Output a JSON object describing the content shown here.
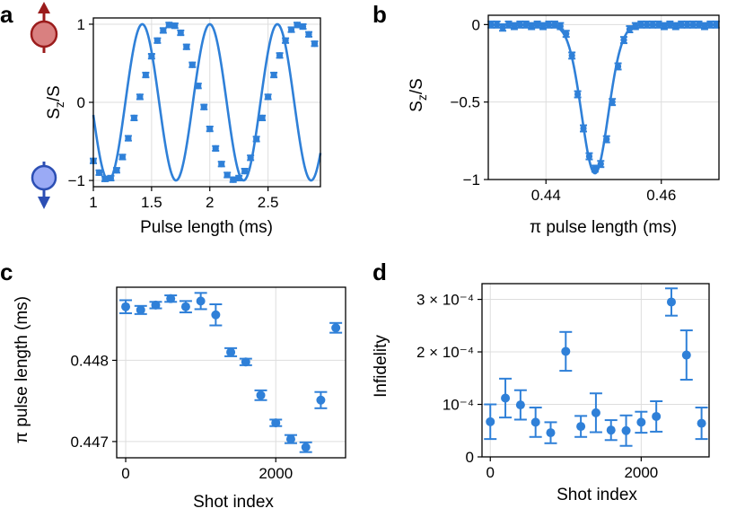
{
  "panel_labels": [
    "a",
    "b",
    "c",
    "d"
  ],
  "colors": {
    "series": "#2f80d8",
    "grid": "#dddddd",
    "spin_up": "#d98080",
    "spin_up_arrow": "#9b1c1c",
    "spin_down": "#9aaaf5",
    "spin_down_arrow": "#2c4fb4"
  },
  "chart_data": [
    {
      "id": "a",
      "type": "line",
      "title": "",
      "xlabel": "Pulse length (ms)",
      "ylabel": "S_z/S",
      "xlim": [
        1.0,
        2.95
      ],
      "ylim": [
        -1.08,
        1.08
      ],
      "xticks": [
        1,
        1.5,
        2,
        2.5
      ],
      "xticklabels": [
        "1",
        "1.5",
        "2",
        "2.5"
      ],
      "yticks": [
        1,
        0,
        -1
      ],
      "yticklabels": [
        "1",
        "0",
        "−1"
      ],
      "fit": {
        "model": "-cos(2*pi*f*(t - t0))",
        "f": 1.724,
        "t0": 1.13
      },
      "x": [
        1.0,
        1.05,
        1.1,
        1.15,
        1.2,
        1.25,
        1.3,
        1.35,
        1.4,
        1.45,
        1.5,
        1.55,
        1.6,
        1.65,
        1.7,
        1.75,
        1.8,
        1.85,
        1.9,
        1.95,
        2.0,
        2.05,
        2.1,
        2.15,
        2.2,
        2.25,
        2.3,
        2.35,
        2.4,
        2.45,
        2.5,
        2.55,
        2.6,
        2.65,
        2.7,
        2.75,
        2.8,
        2.85,
        2.9
      ],
      "values": [
        -0.75,
        -0.9,
        -0.98,
        -0.97,
        -0.87,
        -0.7,
        -0.46,
        -0.2,
        0.07,
        0.35,
        0.59,
        0.79,
        0.92,
        0.99,
        0.98,
        0.89,
        0.71,
        0.48,
        0.21,
        -0.06,
        -0.34,
        -0.59,
        -0.79,
        -0.93,
        -0.99,
        -0.97,
        -0.88,
        -0.71,
        -0.47,
        -0.2,
        0.07,
        0.35,
        0.6,
        0.79,
        0.93,
        0.99,
        0.97,
        0.87,
        0.75
      ],
      "err": 0.03,
      "annotations": [
        "spin-up marker at +1",
        "spin-down marker at −1"
      ]
    },
    {
      "id": "b",
      "type": "line",
      "title": "",
      "xlabel": "π pulse length (ms)",
      "ylabel": "S_z/S",
      "xlim": [
        0.43,
        0.47
      ],
      "ylim": [
        -1.0,
        0.06
      ],
      "xticks": [
        0.44,
        0.46
      ],
      "xticklabels": [
        "0.44",
        "0.46"
      ],
      "yticks": [
        0,
        -0.5,
        -1
      ],
      "yticklabels": [
        "0",
        "−0.5",
        "−1"
      ],
      "fit": {
        "model": "-A*exp(-(x-x0)^2/(2*s^2))",
        "A": 0.96,
        "x0": 0.4485,
        "s": 0.0023
      },
      "x": [
        0.4305,
        0.4315,
        0.4325,
        0.4335,
        0.4345,
        0.4355,
        0.4365,
        0.4375,
        0.4385,
        0.4395,
        0.4405,
        0.4415,
        0.4425,
        0.4435,
        0.4445,
        0.4455,
        0.4465,
        0.4475,
        0.4485,
        0.4495,
        0.4505,
        0.4515,
        0.4525,
        0.4535,
        0.4545,
        0.4555,
        0.4565,
        0.4575,
        0.4585,
        0.4595,
        0.4605,
        0.4615,
        0.4625,
        0.4635,
        0.4645,
        0.4655,
        0.4665,
        0.4675,
        0.4685,
        0.4695
      ],
      "values": [
        0.0,
        0.0,
        -0.02,
        0.0,
        -0.01,
        0.0,
        0.0,
        -0.01,
        0.0,
        -0.01,
        0.0,
        0.0,
        -0.01,
        -0.06,
        -0.2,
        -0.45,
        -0.67,
        -0.85,
        -0.93,
        -0.9,
        -0.74,
        -0.5,
        -0.27,
        -0.1,
        -0.03,
        -0.01,
        0.0,
        0.0,
        0.0,
        0.0,
        -0.01,
        0.0,
        -0.01,
        0.0,
        0.0,
        0.0,
        0.0,
        -0.01,
        0.0,
        0.0
      ],
      "err": 0.02
    },
    {
      "id": "c",
      "type": "scatter",
      "title": "",
      "xlabel": "Shot index",
      "ylabel": "π pulse length (ms)",
      "xlim": [
        -120,
        2930
      ],
      "ylim": [
        0.4468,
        0.4489
      ],
      "xticks": [
        0,
        2000
      ],
      "xticklabels": [
        "0",
        "2000"
      ],
      "yticks": [
        0.448,
        0.447
      ],
      "yticklabels": [
        "0.448",
        "0.447"
      ],
      "x": [
        0,
        200,
        400,
        600,
        800,
        1000,
        1200,
        1400,
        1600,
        1800,
        2000,
        2200,
        2400,
        2600,
        2800
      ],
      "values": [
        0.44866,
        0.44862,
        0.44868,
        0.44876,
        0.44866,
        0.44873,
        0.44856,
        0.4481,
        0.44798,
        0.44757,
        0.44723,
        0.44703,
        0.44693,
        0.44751,
        0.4484
      ],
      "err": [
        8e-05,
        5e-05,
        4e-05,
        4e-05,
        7e-05,
        0.0001,
        0.00013,
        5e-05,
        4e-05,
        6e-05,
        4e-05,
        5e-05,
        6e-05,
        0.0001,
        6e-05
      ]
    },
    {
      "id": "d",
      "type": "scatter",
      "title": "",
      "xlabel": "Shot index",
      "ylabel": "Infidelity",
      "xlim": [
        -110,
        2900
      ],
      "ylim": [
        0,
        0.00033
      ],
      "xticks": [
        0,
        2000
      ],
      "xticklabels": [
        "0",
        "2000"
      ],
      "yticks": [
        0,
        0.0001,
        0.0002,
        0.0003
      ],
      "yticklabels": [
        "0",
        "10⁻⁴",
        "2 × 10⁻⁴",
        "3 × 10⁻⁴"
      ],
      "x": [
        0,
        200,
        400,
        600,
        800,
        1000,
        1200,
        1400,
        1600,
        1800,
        2000,
        2200,
        2400,
        2600,
        2800
      ],
      "values": [
        6.7e-05,
        0.000112,
        9.9e-05,
        6.6e-05,
        4.6e-05,
        0.000201,
        5.8e-05,
        8.4e-05,
        5.1e-05,
        5e-05,
        6.6e-05,
        7.7e-05,
        0.000295,
        0.000194,
        6.4e-05
      ],
      "err": [
        3.3e-05,
        3.7e-05,
        2.8e-05,
        2.8e-05,
        2e-05,
        3.7e-05,
        2e-05,
        3.7e-05,
        1.9e-05,
        2.9e-05,
        2e-05,
        2.9e-05,
        2.6e-05,
        4.7e-05,
        3e-05
      ]
    }
  ]
}
